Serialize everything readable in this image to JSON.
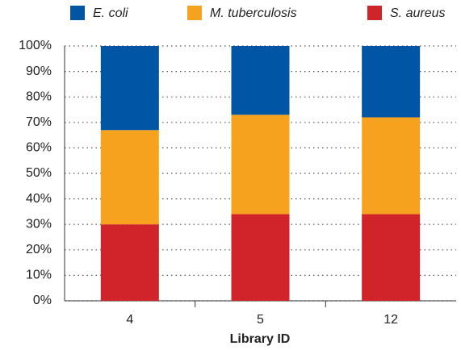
{
  "chart_data": {
    "type": "stacked-bar",
    "x_label": "Library ID",
    "categories": [
      "4",
      "5",
      "12"
    ],
    "series": [
      {
        "name": "E. coli",
        "color": "#0055a5",
        "values": [
          33,
          27,
          28
        ]
      },
      {
        "name": "M. tuberculosis",
        "color": "#f6a21e",
        "values": [
          37,
          39,
          38
        ]
      },
      {
        "name": "S. aureus",
        "color": "#d1232a",
        "values": [
          30,
          34,
          34
        ]
      }
    ],
    "ylim": [
      0,
      100
    ],
    "yticks": [
      {
        "value": 0,
        "label": "0%"
      },
      {
        "value": 10,
        "label": "10%"
      },
      {
        "value": 20,
        "label": "20%"
      },
      {
        "value": 30,
        "label": "30%"
      },
      {
        "value": 40,
        "label": "40%"
      },
      {
        "value": 50,
        "label": "50%"
      },
      {
        "value": 60,
        "label": "60%"
      },
      {
        "value": 70,
        "label": "70%"
      },
      {
        "value": 80,
        "label": "80%"
      },
      {
        "value": 90,
        "label": "90%"
      },
      {
        "value": 100,
        "label": "100%"
      }
    ],
    "grid": true,
    "legend": "top"
  }
}
